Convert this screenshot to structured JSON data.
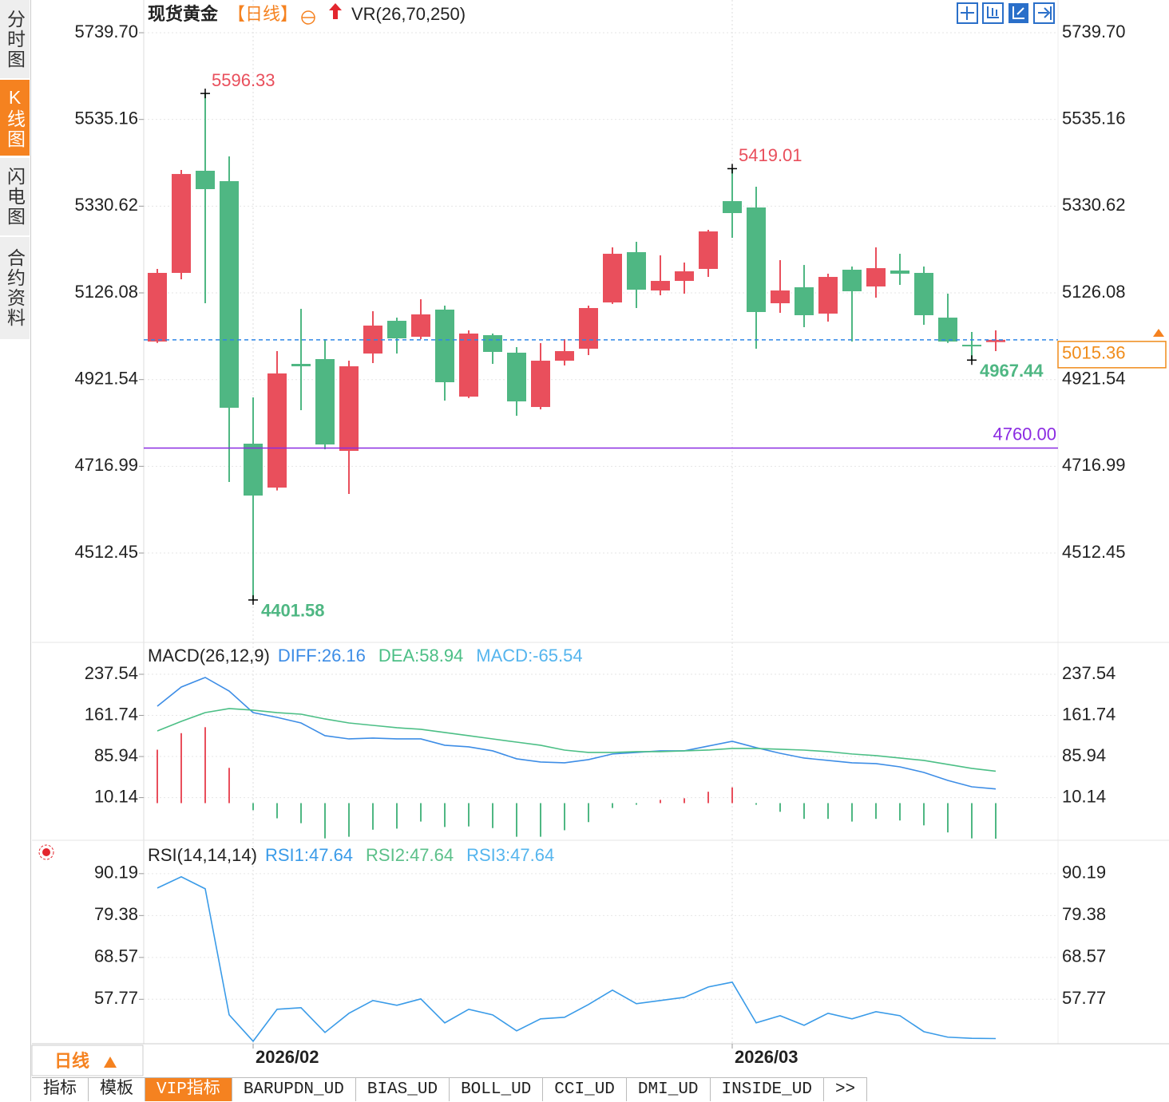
{
  "ui": {
    "sidebar_tabs": [
      {
        "label": "分时图"
      },
      {
        "label": "K线图",
        "active": true
      },
      {
        "label": "闪电图"
      },
      {
        "label": "合约资料"
      }
    ],
    "period_button": "日线",
    "bottom_tabs": [
      {
        "label": "指标"
      },
      {
        "label": "模板"
      },
      {
        "label": "VIP指标",
        "active": true
      },
      {
        "label": "BARUPDN_UD"
      },
      {
        "label": "BIAS_UD"
      },
      {
        "label": "BOLL_UD"
      },
      {
        "label": "CCI_UD"
      },
      {
        "label": "DMI_UD"
      },
      {
        "label": "INSIDE_UD"
      },
      {
        "label": ">>"
      }
    ]
  },
  "chart_data": [
    {
      "type": "candlestick",
      "title": "现货黄金",
      "period": "【日线】",
      "indicator": "VR(26,70,250)",
      "categories": [
        null,
        null,
        null,
        null,
        "2026/02",
        null,
        null,
        null,
        null,
        null,
        null,
        null,
        null,
        null,
        null,
        null,
        null,
        null,
        null,
        null,
        null,
        null,
        null,
        null,
        "2026/03",
        null,
        null,
        null,
        null,
        null,
        null,
        null,
        null,
        null,
        null,
        null
      ],
      "open": [
        5011.3,
        5173.2,
        5414.1,
        5389.6,
        4770.4,
        4666.8,
        4958.6,
        4969.9,
        4753.4,
        4983.0,
        5060.2,
        5022.6,
        5086.6,
        4881.4,
        5026.3,
        4985.0,
        4856.9,
        4966.1,
        4994.4,
        5103.5,
        5222.1,
        5131.7,
        5154.3,
        5182.6,
        5342.5,
        5327.5,
        5101.6,
        5139.3,
        5077.2,
        5180.7,
        5141.2,
        5178.8,
        5173.2,
        5067.7,
        5003.7,
        5010.0
      ],
      "high": [
        5182.6,
        5415.9,
        5596.33,
        5447.9,
        4879.5,
        4988.7,
        5088.4,
        5016.9,
        4966.1,
        5082.8,
        5067.7,
        5111.0,
        5096.0,
        5037.6,
        5030.1,
        4998.1,
        5007.5,
        5016.9,
        5096.0,
        5233.4,
        5246.6,
        5214.6,
        5197.6,
        5274.8,
        5419.01,
        5376.4,
        5203.3,
        5191.9,
        5171.3,
        5188.2,
        5233.4,
        5218.3,
        5188.2,
        5124.2,
        5033.9,
        5037.6
      ],
      "low": [
        5008.0,
        5158.1,
        5101.6,
        4680.0,
        4401.58,
        4660.0,
        4849.4,
        4757.2,
        4651.8,
        4960.5,
        4983.0,
        5016.9,
        4872.0,
        4878.0,
        4958.6,
        4836.2,
        4851.3,
        4954.8,
        4979.3,
        5100.0,
        5090.3,
        5120.4,
        5124.2,
        5163.7,
        5255.9,
        4994.4,
        5079.0,
        5045.2,
        5058.3,
        5011.3,
        5114.8,
        5144.9,
        5050.8,
        5008.0,
        4967.44,
        4988.7
      ],
      "close": [
        5173.2,
        5406.5,
        5370.8,
        4855.1,
        4648.0,
        4936.0,
        4952.9,
        4768.5,
        4952.9,
        5048.9,
        5018.8,
        5075.3,
        4915.3,
        5030.1,
        4986.8,
        4870.1,
        4966.1,
        4988.7,
        5090.3,
        5218.3,
        5133.6,
        5154.3,
        5176.9,
        5271.0,
        5314.3,
        5080.9,
        5131.7,
        5073.4,
        5163.7,
        5129.9,
        5184.4,
        5171.3,
        5073.4,
        5011.3,
        4999.9,
        5015.36
      ],
      "up_color": "#e94f5c",
      "down_color": "#4fb783",
      "ylim": [
        4301.7,
        5816.9
      ],
      "yticks": [
        {
          "value": 5739.7,
          "label": "5739.70"
        },
        5535.16,
        5330.62,
        5126.08,
        4921.54,
        4716.99,
        4512.45
      ],
      "grid": true,
      "high_labels": [
        5596.33,
        5419.01
      ],
      "low_labels": [
        4401.58,
        4967.44
      ],
      "hline": {
        "value": 4760,
        "label": "4760.00",
        "color": "#8b2be2"
      },
      "last_price": 5015.36,
      "last_price_color": "#2f86e8",
      "last_price_box_color": "#f08c1a"
    },
    {
      "type": "macd",
      "title": "MACD(26,12,9)",
      "series": [
        {
          "name": "DIFF:26.16",
          "color": "#3d8de6",
          "values": [
            178.7,
            214.0,
            231.7,
            206.6,
            166.9,
            158.1,
            147.8,
            124.3,
            118.4,
            119.9,
            118.4,
            118.4,
            106.7,
            103.7,
            96.4,
            81.7,
            75.8,
            74.3,
            80.2,
            90.6,
            93.5,
            96.4,
            96.4,
            105.2,
            114.0,
            102.3,
            91.9,
            83.1,
            78.7,
            74.3,
            72.8,
            66.9,
            56.6,
            41.9,
            30.1,
            26.16
          ]
        },
        {
          "name": "DEA:58.94",
          "color": "#4cbf86",
          "values": [
            133.1,
            150.8,
            166.9,
            174.3,
            171.4,
            166.9,
            164.0,
            155.2,
            147.8,
            143.4,
            139.0,
            136.1,
            130.2,
            124.3,
            118.4,
            112.5,
            106.7,
            97.8,
            93.5,
            93.5,
            94.9,
            94.9,
            96.4,
            97.8,
            100.8,
            100.8,
            99.3,
            97.8,
            94.9,
            90.6,
            87.6,
            83.1,
            78.7,
            71.4,
            64.0,
            58.94
          ]
        }
      ],
      "histogram": {
        "name": "MACD:-65.54",
        "color": "#55b5ee",
        "up_color": "#e94f5c",
        "down_color": "#4fb783",
        "values": [
          98.5,
          129,
          140,
          65,
          -13,
          -28,
          -37,
          -65,
          -62,
          -49,
          -47,
          -34,
          -44,
          -43,
          -46,
          -62,
          -62,
          -50,
          -35,
          -9,
          -3,
          6,
          9,
          21,
          29,
          -3,
          -16,
          -29,
          -29,
          -34,
          -29,
          -32,
          -41,
          -54,
          -65,
          -65.54
        ]
      },
      "ylim": [
        -67,
        296.4
      ],
      "yticks": [
        237.54,
        161.74,
        85.94,
        10.14
      ],
      "grid": true
    },
    {
      "type": "line",
      "title": "RSI(14,14,14)",
      "series": [
        {
          "name": "RSI1:47.64",
          "color": "#3a9be8",
          "values": [
            86.48,
            89.37,
            86.28,
            53.75,
            46.95,
            55.19,
            55.6,
            49.22,
            54.16,
            57.45,
            56.22,
            57.87,
            51.69,
            55.19,
            53.75,
            49.63,
            52.72,
            53.13,
            56.42,
            60.13,
            56.63,
            57.45,
            58.28,
            60.95,
            62.19,
            51.69,
            53.54,
            51.07,
            54.16,
            52.72,
            54.57,
            53.54,
            49.42,
            48.0,
            47.7,
            47.64
          ]
        },
        {
          "name": "RSI2:47.64",
          "color": "#5cc08a"
        },
        {
          "name": "RSI3:47.64",
          "color": "#55b5ee"
        }
      ],
      "ylim": [
        46.3,
        98.8
      ],
      "yticks": [
        90.19,
        79.38,
        68.57,
        57.77
      ],
      "grid": true
    }
  ]
}
